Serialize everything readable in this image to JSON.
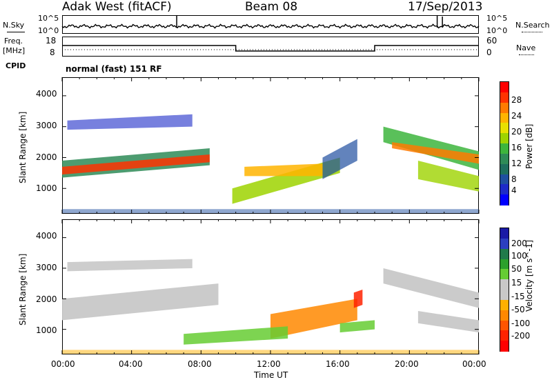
{
  "header": {
    "station": "Adak West (fitACF)",
    "beam": "Beam 08",
    "date": "17/Sep/2013"
  },
  "noise_panel": {
    "left_label": "N.Sky",
    "right_label": "N.Search",
    "y_ticks_left": [
      "10^5",
      "10^0"
    ],
    "y_ticks_right": [
      "10^5",
      "10^0"
    ]
  },
  "freq_panel": {
    "left_label_1": "Freq.",
    "left_label_2": "[MHz]",
    "right_label": "Nave",
    "y_ticks_left": [
      "18",
      "8"
    ],
    "y_ticks_right": [
      "60",
      "0"
    ]
  },
  "cpid": {
    "label": "CPID",
    "mode": "normal (fast) 151 RF"
  },
  "chart_data": [
    {
      "type": "heatmap",
      "quantity": "Power",
      "ylabel": "Slant Range [km]",
      "xlabel": "",
      "colorbar_label": "Power [dB]",
      "colorbar_ticks": [
        "28",
        "24",
        "20",
        "16",
        "12",
        "8",
        "4"
      ],
      "colorbar_colors": [
        "#ff0000",
        "#ff3300",
        "#ff7a00",
        "#ffb400",
        "#e8e000",
        "#9ed300",
        "#3db53d",
        "#2e8b57",
        "#1e6e5e",
        "#1f4fa0",
        "#1d2bc8",
        "#0000ff"
      ],
      "ylim": [
        180,
        4600
      ],
      "y_ticks": [
        "4000",
        "3000",
        "2000",
        "1000"
      ],
      "x_ticks": [
        "00:00",
        "04:00",
        "08:00",
        "12:00",
        "16:00",
        "20:00",
        "00:00"
      ]
    },
    {
      "type": "heatmap",
      "quantity": "Velocity",
      "ylabel": "Slant Range [km]",
      "xlabel": "Time UT",
      "colorbar_label": "Velocity [m s^-1]",
      "colorbar_ticks": [
        "200",
        "100",
        "50",
        "15",
        "-15",
        "-50",
        "-100",
        "-200"
      ],
      "colorbar_colors": [
        "#1a1aa6",
        "#2b3fbf",
        "#207a4a",
        "#2ca02c",
        "#66cc33",
        "#c8c8c8",
        "#c8c8c8",
        "#ffb000",
        "#ff8800",
        "#ff5500",
        "#ff2200",
        "#ff0000"
      ],
      "ylim": [
        180,
        4600
      ],
      "y_ticks": [
        "4000",
        "3000",
        "2000",
        "1000"
      ],
      "x_ticks": [
        "00:00",
        "04:00",
        "08:00",
        "12:00",
        "16:00",
        "20:00",
        "00:00"
      ]
    }
  ],
  "colors": {
    "frame": "#000000",
    "ground_scatter": "#c8c8c8"
  }
}
